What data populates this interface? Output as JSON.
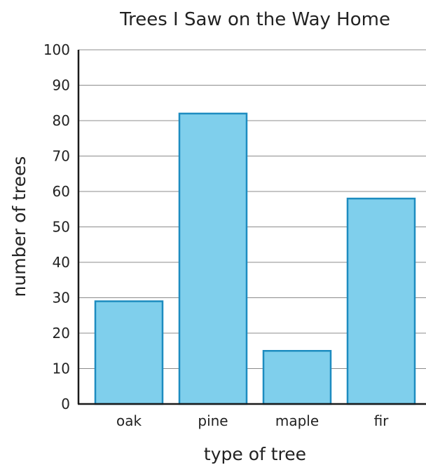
{
  "chart_data": {
    "type": "bar",
    "title": "Trees I Saw on the Way Home",
    "xlabel": "type of tree",
    "ylabel": "number of trees",
    "categories": [
      "oak",
      "pine",
      "maple",
      "fir"
    ],
    "values": [
      29,
      82,
      15,
      58
    ],
    "ylim": [
      0,
      100
    ],
    "yticks": [
      "0",
      "10",
      "20",
      "30",
      "40",
      "50",
      "60",
      "70",
      "80",
      "90",
      "100"
    ],
    "grid": true,
    "colors": {
      "bar_fill": "#7fcfec",
      "bar_stroke": "#1d8cc0"
    }
  }
}
